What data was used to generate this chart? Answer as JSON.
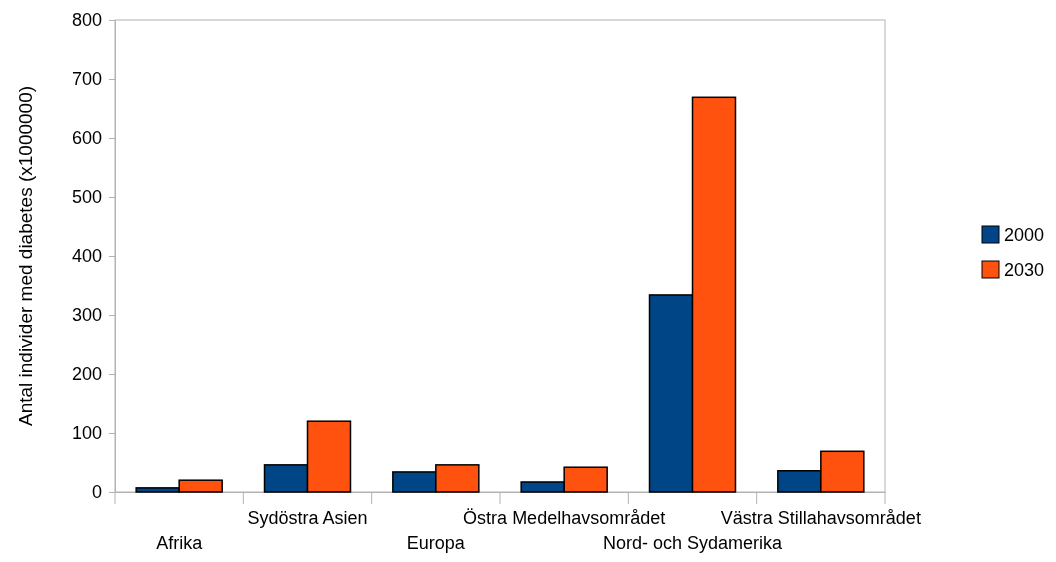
{
  "chart_data": {
    "type": "bar",
    "ylabel": "Antal individer med diabetes (x1000000)",
    "categories": [
      "Afrika",
      "Sydöstra Asien",
      "Europa",
      "Östra Medelhavsområdet",
      "Nord- och Sydamerika",
      "Västra Stillahavsområdet"
    ],
    "series": [
      {
        "name": "2000",
        "color": "#004586",
        "values": [
          7,
          46,
          34,
          17,
          334,
          36
        ]
      },
      {
        "name": "2030",
        "color": "#ff520e",
        "values": [
          20,
          120,
          46,
          42,
          669,
          69
        ]
      }
    ],
    "ylim": [
      0,
      800
    ],
    "yticks": [
      0,
      100,
      200,
      300,
      400,
      500,
      600,
      700,
      800
    ],
    "grid": false,
    "legend": "right"
  }
}
